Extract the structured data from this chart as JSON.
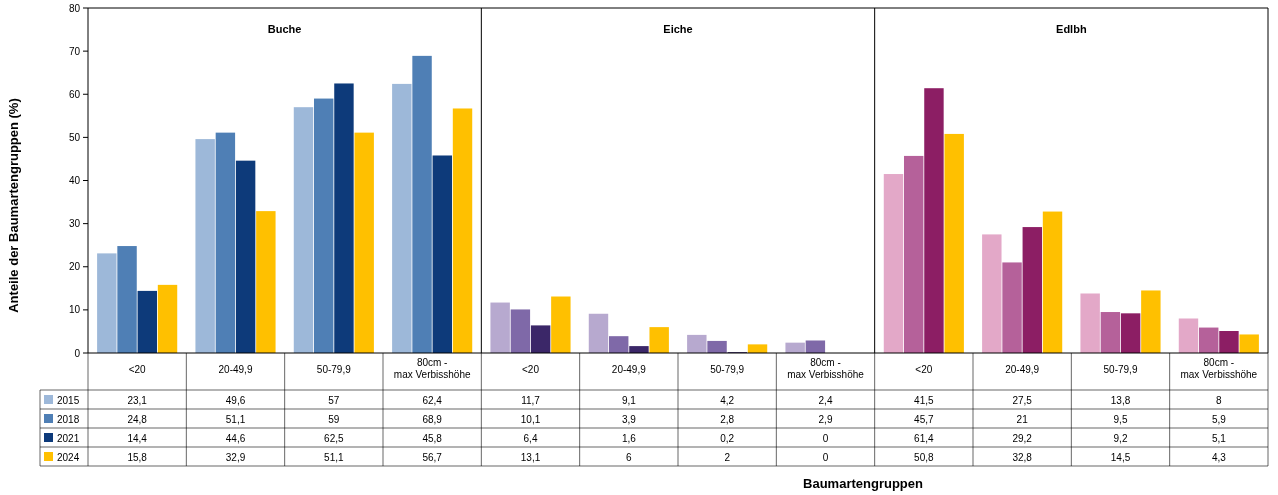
{
  "chart_data": {
    "type": "bar",
    "ylabel": "Anteile der Baumartengruppen (%)",
    "annotations": [
      "Buche",
      "Eiche",
      "Edlbh",
      {
        "text": "Baumartengruppen"
      }
    ],
    "categories": [
      "<20",
      "20-49,9",
      "50-79,9",
      "80cm - max Verbisshöhe",
      "<20",
      "20-49,9",
      "50-79,9",
      "80cm - max Verbisshöhe",
      "<20",
      "20-49,9",
      "50-79,9",
      "80cm - max Verbisshöhe"
    ],
    "series": [
      {
        "name": "2015",
        "color": "#9db8d9",
        "colors": [
          "#9db8d9",
          "#9db8d9",
          "#9db8d9",
          "#9db8d9",
          "#b7a9cf",
          "#b7a9cf",
          "#b7a9cf",
          "#b7a9cf",
          "#e3a8c8",
          "#e3a8c8",
          "#e3a8c8",
          "#e3a8c8"
        ],
        "values": [
          23.1,
          49.6,
          57,
          62.4,
          11.7,
          9.1,
          4.2,
          2.4,
          41.5,
          27.5,
          13.8,
          8
        ],
        "value_labels": [
          "23,1",
          "49,6",
          "57",
          "62,4",
          "11,7",
          "9,1",
          "4,2",
          "2,4",
          "41,5",
          "27,5",
          "13,8",
          "8"
        ]
      },
      {
        "name": "2018",
        "color": "#4f7fb5",
        "colors": [
          "#4f7fb5",
          "#4f7fb5",
          "#4f7fb5",
          "#4f7fb5",
          "#7f69a8",
          "#7f69a8",
          "#7f69a8",
          "#7f69a8",
          "#b5619a",
          "#b5619a",
          "#b5619a",
          "#b5619a"
        ],
        "values": [
          24.8,
          51.1,
          59,
          68.9,
          10.1,
          3.9,
          2.8,
          2.9,
          45.7,
          21,
          9.5,
          5.9
        ],
        "value_labels": [
          "24,8",
          "51,1",
          "59",
          "68,9",
          "10,1",
          "3,9",
          "2,8",
          "2,9",
          "45,7",
          "21",
          "9,5",
          "5,9"
        ]
      },
      {
        "name": "2021",
        "color": "#0d3a7a",
        "colors": [
          "#0d3a7a",
          "#0d3a7a",
          "#0d3a7a",
          "#0d3a7a",
          "#3b2768",
          "#3b2768",
          "#3b2768",
          "#3b2768",
          "#8c1e64",
          "#8c1e64",
          "#8c1e64",
          "#8c1e64"
        ],
        "values": [
          14.4,
          44.6,
          62.5,
          45.8,
          6.4,
          1.6,
          0.2,
          0,
          61.4,
          29.2,
          9.2,
          5.1
        ],
        "value_labels": [
          "14,4",
          "44,6",
          "62,5",
          "45,8",
          "6,4",
          "1,6",
          "0,2",
          "0",
          "61,4",
          "29,2",
          "9,2",
          "5,1"
        ]
      },
      {
        "name": "2024",
        "color": "#ffc000",
        "colors": [
          "#ffc000",
          "#ffc000",
          "#ffc000",
          "#ffc000",
          "#ffc000",
          "#ffc000",
          "#ffc000",
          "#ffc000",
          "#ffc000",
          "#ffc000",
          "#ffc000",
          "#ffc000"
        ],
        "values": [
          15.8,
          32.9,
          51.1,
          56.7,
          13.1,
          6,
          2,
          0,
          50.8,
          32.8,
          14.5,
          4.3
        ],
        "value_labels": [
          "15,8",
          "32,9",
          "51,1",
          "56,7",
          "13,1",
          "6",
          "2",
          "0",
          "50,8",
          "32,8",
          "14,5",
          "4,3"
        ]
      }
    ],
    "ylim": [
      0,
      80
    ],
    "yticks": [
      0,
      10,
      20,
      30,
      40,
      50,
      60,
      70,
      80
    ],
    "grid": false,
    "legend": "bottom left"
  }
}
